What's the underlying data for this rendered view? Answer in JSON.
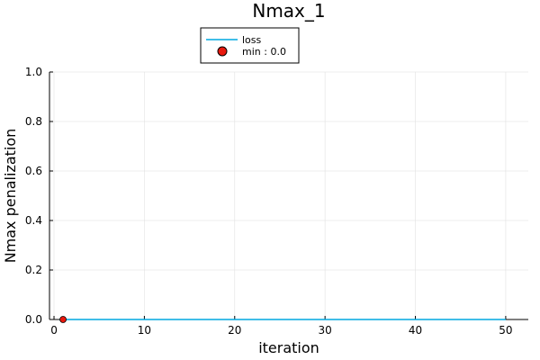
{
  "chart_data": {
    "type": "line",
    "title": "Nmax_1",
    "xlabel": "iteration",
    "ylabel": "Nmax penalization",
    "xlim": [
      -0.5,
      52.5
    ],
    "ylim": [
      0,
      1.0
    ],
    "xticks": [
      0,
      10,
      20,
      30,
      40,
      50
    ],
    "yticks": [
      0.0,
      0.2,
      0.4,
      0.6,
      0.8,
      1.0
    ],
    "ytick_labels": [
      "0.0",
      "0.2",
      "0.4",
      "0.6",
      "0.8",
      "1.0"
    ],
    "grid": true,
    "legend_position": "top-center-outside",
    "series": [
      {
        "name": "loss",
        "kind": "line",
        "color": "#00a9e0",
        "x": [
          1,
          50
        ],
        "y": [
          0.0,
          0.0
        ]
      },
      {
        "name": "min : 0.0",
        "kind": "scatter",
        "color": "#e8190e",
        "x": [
          1
        ],
        "y": [
          0.0
        ]
      }
    ]
  }
}
